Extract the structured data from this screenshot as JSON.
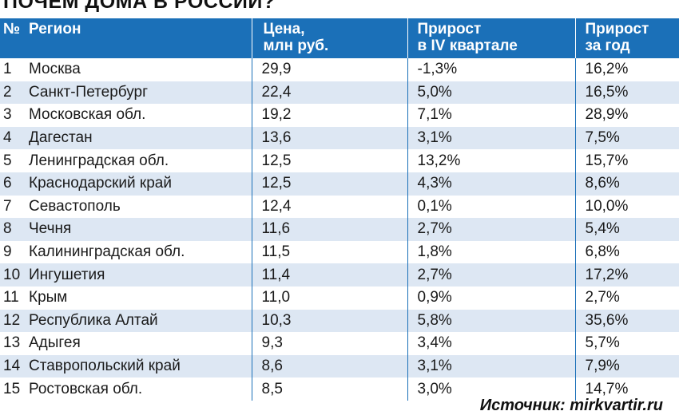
{
  "title": "ПОЧЕМ ДОМА В РОССИИ?",
  "header": {
    "num": "№",
    "region": "Регион",
    "price_line1": "Цена,",
    "price_line2": "млн руб.",
    "q4_line1": "Прирост",
    "q4_line2": "в IV квартале",
    "year_line1": "Прирост",
    "year_line2": "за год"
  },
  "rows": [
    {
      "num": "1",
      "region": "Москва",
      "price": "29,9",
      "q4": "-1,3%",
      "year": "16,2%"
    },
    {
      "num": "2",
      "region": "Санкт-Петербург",
      "price": "22,4",
      "q4": "5,0%",
      "year": "16,5%"
    },
    {
      "num": "3",
      "region": "Московская обл.",
      "price": "19,2",
      "q4": "7,1%",
      "year": "28,9%"
    },
    {
      "num": "4",
      "region": "Дагестан",
      "price": "13,6",
      "q4": "3,1%",
      "year": "7,5%"
    },
    {
      "num": "5",
      "region": "Ленинградская обл.",
      "price": "12,5",
      "q4": "13,2%",
      "year": "15,7%"
    },
    {
      "num": "6",
      "region": "Краснодарский край",
      "price": "12,5",
      "q4": "4,3%",
      "year": "8,6%"
    },
    {
      "num": "7",
      "region": "Севастополь",
      "price": "12,4",
      "q4": "0,1%",
      "year": "10,0%"
    },
    {
      "num": "8",
      "region": "Чечня",
      "price": "11,6",
      "q4": "2,7%",
      "year": "5,4%"
    },
    {
      "num": "9",
      "region": "Калининградская обл.",
      "price": "11,5",
      "q4": "1,8%",
      "year": "6,8%"
    },
    {
      "num": "10",
      "region": "Ингушетия",
      "price": "11,4",
      "q4": "2,7%",
      "year": "17,2%"
    },
    {
      "num": "11",
      "region": "Крым",
      "price": "11,0",
      "q4": "0,9%",
      "year": "2,7%"
    },
    {
      "num": "12",
      "region": "Республика Алтай",
      "price": "10,3",
      "q4": "5,8%",
      "year": "35,6%"
    },
    {
      "num": "13",
      "region": "Адыгея",
      "price": "9,3",
      "q4": "3,4%",
      "year": "5,7%"
    },
    {
      "num": "14",
      "region": "Ставропольский край",
      "price": "8,6",
      "q4": "3,1%",
      "year": "7,9%"
    },
    {
      "num": "15",
      "region": "Ростовская обл.",
      "price": "8,5",
      "q4": "3,0%",
      "year": "14,7%"
    }
  ],
  "source": "Источник: mirkvartir.ru",
  "colors": {
    "header_bg": "#1b70b8",
    "stripe_bg": "#dde7f3",
    "text": "#111111"
  }
}
